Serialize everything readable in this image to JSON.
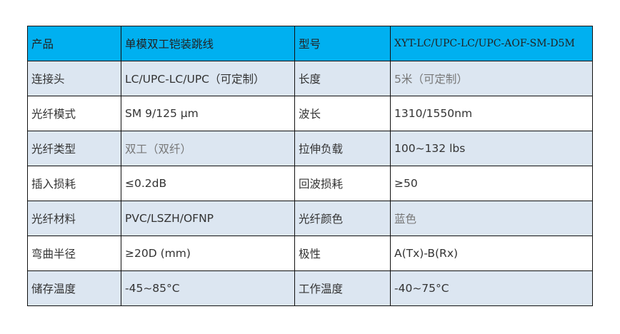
{
  "header_color": "#00b0f0",
  "rows": [
    {
      "l1": "产品",
      "v1": "单模双工铠装跳线",
      "l2": "型号",
      "v2": "XYT-LC/UPC-LC/UPC-AOF-SM-D5M"
    },
    {
      "l1": "连接头",
      "v1": "LC/UPC-LC/UPC（可定制）",
      "l2": "长度",
      "v2": "5米（可定制）"
    },
    {
      "l1": "光纤模式",
      "v1": "SM  9/125 μm",
      "l2": "波长",
      "v2": "1310/1550nm"
    },
    {
      "l1": "光纤类型",
      "v1": "双工（双纤）",
      "l2": "拉伸负载",
      "v2": "100~132 lbs"
    },
    {
      "l1": "插入损耗",
      "v1": "≤0.2dB",
      "l2": "回波损耗",
      "v2": "≥50"
    },
    {
      "l1": "光纤材料",
      "v1": "PVC/LSZH/OFNP",
      "l2": "光纤颜色",
      "v2": "蓝色"
    },
    {
      "l1": "弯曲半径",
      "v1": "≥20D (mm)",
      "l2": "极性",
      "v2": "A(Tx)-B(Rx)"
    },
    {
      "l1": "储存温度",
      "v1": "-45~85°C",
      "l2": "工作温度",
      "v2": "-40~75°C"
    }
  ]
}
